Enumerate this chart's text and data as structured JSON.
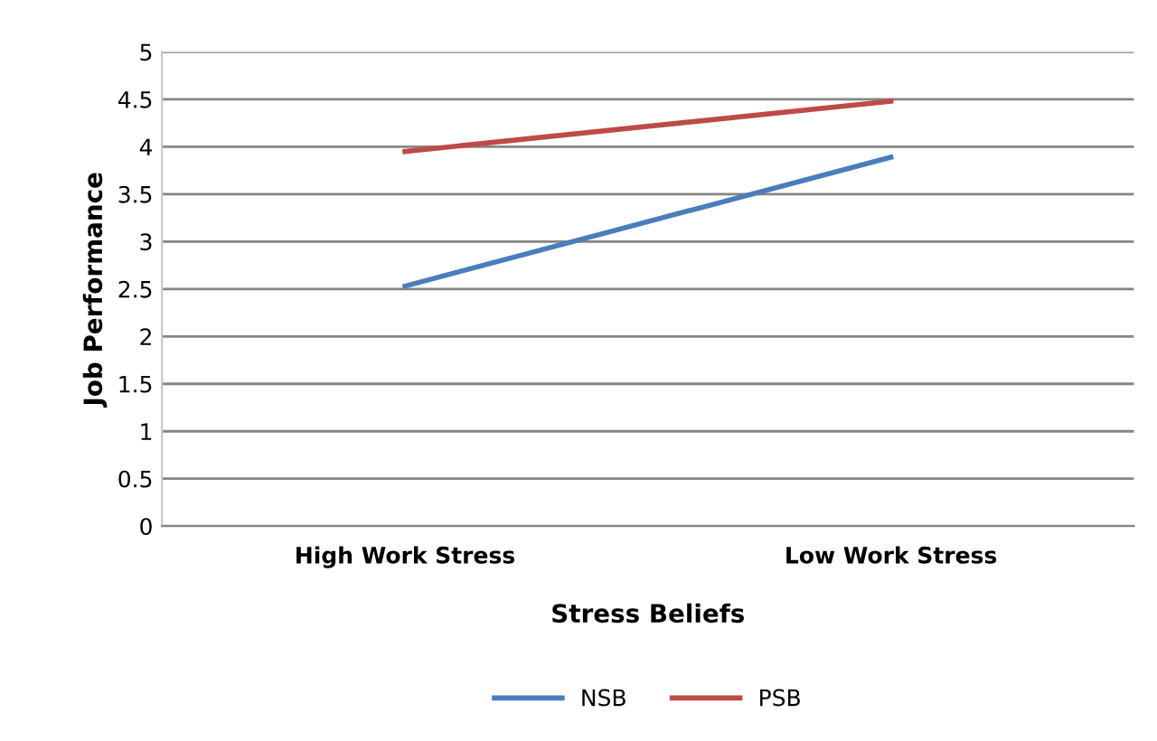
{
  "chart_data": {
    "type": "line",
    "xlabel": "Stress Beliefs",
    "ylabel": "Job Performance",
    "categories": [
      "High Work Stress",
      "Low Work Stress"
    ],
    "series": [
      {
        "name": "NSB",
        "color": "#4a7ebb",
        "values": [
          2.53,
          3.89
        ]
      },
      {
        "name": "PSB",
        "color": "#be4b48",
        "values": [
          3.95,
          4.48
        ]
      }
    ],
    "ylim": [
      0,
      5
    ],
    "yticks": [
      0,
      0.5,
      1,
      1.5,
      2,
      2.5,
      3,
      3.5,
      4,
      4.5,
      5
    ],
    "grid": "y",
    "legend": "bottom",
    "marker": "none",
    "line_style": "solid"
  }
}
